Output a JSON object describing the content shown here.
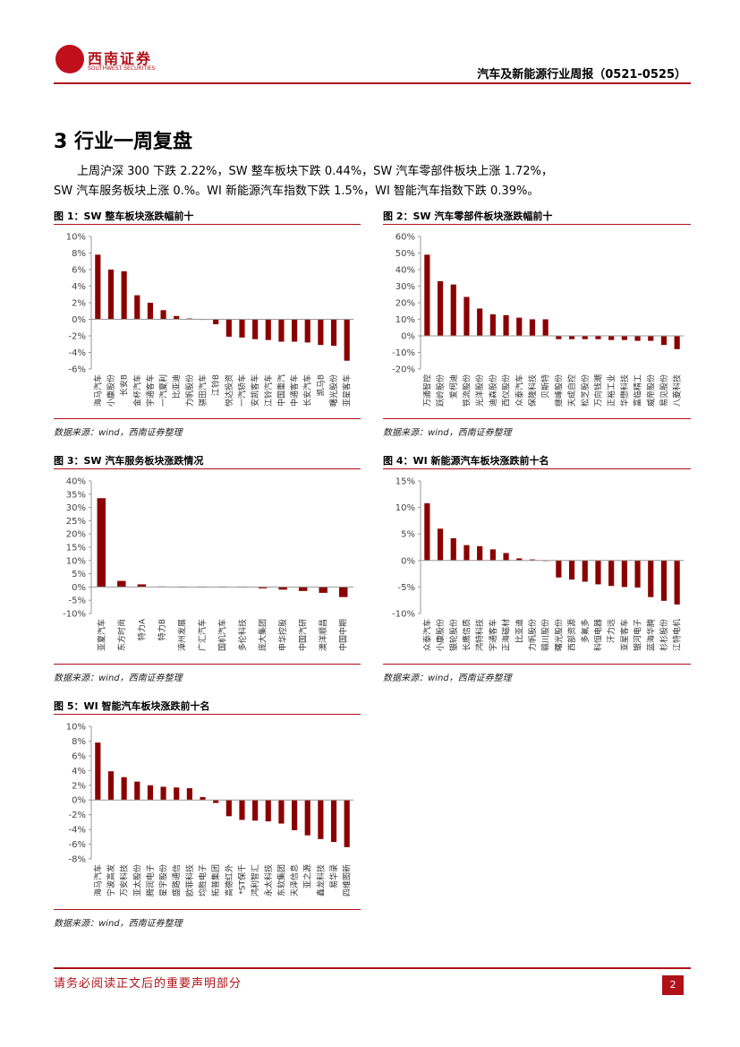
{
  "header": {
    "logo_name": "西南证券",
    "logo_sub": "SOUTHWEST SECURITIES",
    "report_title": "汽车及新能源行业周报（0521-0525）"
  },
  "section": {
    "title": "3 行业一周复盘",
    "para1": "上周沪深 300 下跌 2.22%，SW 整车板块下跌 0.44%，SW 汽车零部件板块上涨 1.72%，",
    "para2": "SW 汽车服务板块上涨 0.%。WI 新能源汽车指数下跌 1.5%，WI 智能汽车指数下跌 0.39%。"
  },
  "figures": {
    "fig1": {
      "title": "图 1：SW 整车板块涨跌幅前十",
      "source": "数据来源：wind，西南证券整理"
    },
    "fig2": {
      "title": "图 2：SW 汽车零部件板块涨跌幅前十",
      "source": "数据来源：wind，西南证券整理"
    },
    "fig3": {
      "title": "图 3：SW 汽车服务板块涨跌情况",
      "source": "数据来源：wind，西南证券整理"
    },
    "fig4": {
      "title": "图 4：WI 新能源汽车板块涨跌前十名",
      "source": "数据来源：wind，西南证券整理"
    },
    "fig5": {
      "title": "图 5：WI 智能汽车板块涨跌前十名",
      "source": "数据来源：wind，西南证券整理"
    }
  },
  "footer": {
    "disclaimer": "请务必阅读正文后的重要声明部分",
    "page": "2"
  },
  "colors": {
    "bar": "#8b0000",
    "accent": "#b01018"
  },
  "chart_data": [
    {
      "id": "c1",
      "type": "bar",
      "title": "图 1：SW 整车板块涨跌幅前十",
      "categories": [
        "海马汽车",
        "小康股份",
        "长安B",
        "金杯汽车",
        "宇通客车",
        "一汽夏利",
        "比亚迪",
        "力帆股份",
        "骐田汽车",
        "江铃B",
        "悦达投资",
        "一汽轿车",
        "安凯客车",
        "江铃汽车",
        "中国重汽",
        "中通客车",
        "长安汽车",
        "凯马B",
        "曙光股份",
        "亚星客车"
      ],
      "values": [
        7.8,
        6.0,
        5.8,
        2.9,
        2.0,
        1.1,
        0.4,
        0.1,
        0,
        -0.6,
        -2.1,
        -2.2,
        -2.4,
        -2.5,
        -2.7,
        -2.7,
        -2.8,
        -3.1,
        -3.2,
        -5.0
      ],
      "ylim": [
        -6,
        10
      ],
      "ticks": [
        10,
        8,
        6,
        4,
        2,
        0,
        -2,
        -4,
        -6
      ],
      "tick_format": "%"
    },
    {
      "id": "c2",
      "type": "bar",
      "title": "图 2：SW 汽车零部件板块涨跌幅前十",
      "categories": [
        "万通智控",
        "跃岭股份",
        "爱柯迪",
        "铁流股份",
        "光洋股份",
        "迪森股份",
        "西仪股份",
        "众泰汽车",
        "保隆科技",
        "贝斯特",
        "继峰股份",
        "天成自控",
        "松芝股份",
        "万向钱潮",
        "正裕工业",
        "华懋科技",
        "富临精工",
        "威帝股份",
        "易见股份",
        "八菱科技"
      ],
      "values": [
        49,
        33,
        31,
        23.5,
        16.5,
        13,
        12.5,
        11,
        10,
        10,
        -2,
        -2,
        -2,
        -2,
        -2.5,
        -2.5,
        -3,
        -3,
        -5.5,
        -8
      ],
      "ylim": [
        -20,
        60
      ],
      "ticks": [
        60,
        50,
        40,
        30,
        20,
        10,
        0,
        -10,
        -20
      ],
      "tick_format": "%"
    },
    {
      "id": "c3",
      "type": "bar",
      "title": "图 3：SW 汽车服务板块涨跌情况",
      "categories": [
        "亚夏汽车",
        "东方时尚",
        "特力A",
        "特力B",
        "漳州发展",
        "广汇汽车",
        "国机汽车",
        "多伦科技",
        "庞大集团",
        "申华控股",
        "中国汽研",
        "澳洋顺昌",
        "中国中期"
      ],
      "values": [
        33.5,
        2.3,
        1.0,
        0.2,
        0,
        0,
        0,
        0,
        -0.5,
        -1.0,
        -1.5,
        -2.2,
        -3.8
      ],
      "ylim": [
        -10,
        40
      ],
      "ticks": [
        40,
        35,
        30,
        25,
        20,
        15,
        10,
        5,
        0,
        -5,
        -10
      ],
      "tick_format": "%"
    },
    {
      "id": "c4",
      "type": "bar",
      "title": "图 4：WI 新能源汽车板块涨跌前十名",
      "categories": [
        "众泰汽车",
        "小康股份",
        "银轮股份",
        "长鹰信质",
        "鸿特科技",
        "宇通客车",
        "正海磁材",
        "比亚迪",
        "力帆股份",
        "赣川股份",
        "曙光股份",
        "西部资源",
        "多氟多",
        "科恒电器",
        "汗力远",
        "亚星客车",
        "银河电子",
        "蓝海华腾",
        "杉杉股份",
        "江特电机"
      ],
      "values": [
        10.8,
        6.0,
        4.2,
        2.9,
        2.7,
        2.1,
        1.4,
        0.4,
        0.2,
        0,
        -3.2,
        -3.6,
        -4.0,
        -4.5,
        -4.8,
        -5.0,
        -5.1,
        -6.9,
        -7.6,
        -8.3
      ],
      "ylim": [
        -10,
        15
      ],
      "ticks": [
        15,
        10,
        5,
        0,
        -5,
        -10
      ],
      "tick_format": "%"
    },
    {
      "id": "c5",
      "type": "bar",
      "title": "图 5：WI 智能汽车板块涨跌前十名",
      "categories": [
        "海马汽车",
        "宁波高发",
        "万安科技",
        "亚太股份",
        "腾润电子",
        "星宇股份",
        "盛路通信",
        "欧菲科技",
        "均胜电子",
        "拓普集团",
        "高德红外",
        "*ST保千",
        "鸿利智汇",
        "永太科技",
        "东软集团",
        "天泽信息",
        "亚之源",
        "鑫龙科技",
        "易华录",
        "四维图新"
      ],
      "values": [
        7.8,
        3.9,
        3.1,
        2.5,
        2.0,
        1.8,
        1.7,
        1.6,
        0.4,
        -0.4,
        -2.2,
        -2.7,
        -2.8,
        -2.9,
        -3.2,
        -4.1,
        -4.8,
        -5.3,
        -5.7,
        -6.4
      ],
      "ylim": [
        -8,
        10
      ],
      "ticks": [
        10,
        8,
        6,
        4,
        2,
        0,
        -2,
        -4,
        -6,
        -8
      ],
      "tick_format": "%"
    }
  ]
}
